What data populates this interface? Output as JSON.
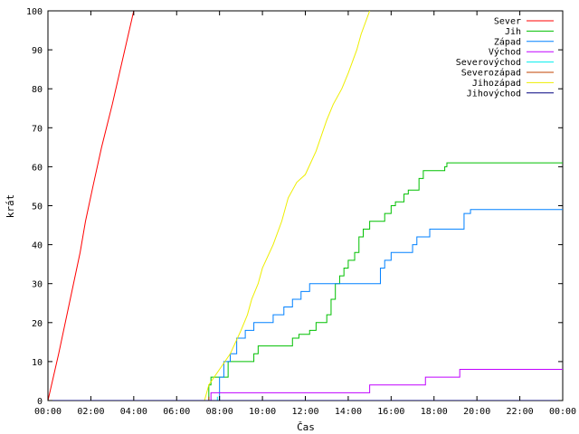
{
  "chart_data": {
    "type": "line",
    "title": "",
    "xlabel": "Čas",
    "ylabel": "krát",
    "xlim": [
      0,
      24
    ],
    "ylim": [
      0,
      100
    ],
    "x_tick_values": [
      0,
      2,
      4,
      6,
      8,
      10,
      12,
      14,
      16,
      18,
      20,
      22,
      24
    ],
    "x_tick_labels": [
      "00:00",
      "02:00",
      "04:00",
      "06:00",
      "08:00",
      "10:00",
      "12:00",
      "14:00",
      "16:00",
      "18:00",
      "20:00",
      "22:00",
      "00:00"
    ],
    "y_tick_values": [
      0,
      10,
      20,
      30,
      40,
      50,
      60,
      70,
      80,
      90,
      100
    ],
    "y_tick_labels": [
      "0",
      "10",
      "20",
      "30",
      "40",
      "50",
      "60",
      "70",
      "80",
      "90",
      "100"
    ],
    "grid": false,
    "legend_position": "top-right",
    "series": [
      {
        "name": "Sever",
        "color": "#ff0000",
        "step": false,
        "points": [
          [
            0,
            0
          ],
          [
            0.5,
            12
          ],
          [
            1,
            25
          ],
          [
            1.5,
            38
          ],
          [
            1.75,
            46
          ],
          [
            2.1,
            55
          ],
          [
            2.5,
            65
          ],
          [
            3,
            76
          ],
          [
            3.5,
            88
          ],
          [
            4,
            100
          ]
        ]
      },
      {
        "name": "Jih",
        "color": "#00c000",
        "step": true,
        "points": [
          [
            0,
            0
          ],
          [
            7.3,
            0
          ],
          [
            7.5,
            4
          ],
          [
            7.6,
            6
          ],
          [
            8.2,
            6
          ],
          [
            8.4,
            10
          ],
          [
            9.4,
            10
          ],
          [
            9.6,
            12
          ],
          [
            9.8,
            14
          ],
          [
            11.3,
            14
          ],
          [
            11.4,
            16
          ],
          [
            11.7,
            17
          ],
          [
            12.2,
            18
          ],
          [
            12.5,
            20
          ],
          [
            13,
            22
          ],
          [
            13.2,
            26
          ],
          [
            13.4,
            30
          ],
          [
            13.6,
            32
          ],
          [
            13.8,
            34
          ],
          [
            14,
            36
          ],
          [
            14.3,
            38
          ],
          [
            14.5,
            42
          ],
          [
            14.7,
            44
          ],
          [
            15,
            46
          ],
          [
            15.7,
            48
          ],
          [
            16,
            50
          ],
          [
            16.2,
            51
          ],
          [
            16.6,
            53
          ],
          [
            16.8,
            54
          ],
          [
            17.3,
            57
          ],
          [
            17.5,
            59
          ],
          [
            18.5,
            60
          ],
          [
            18.6,
            61
          ],
          [
            24,
            61
          ]
        ]
      },
      {
        "name": "Západ",
        "color": "#0080ff",
        "step": true,
        "points": [
          [
            0,
            0
          ],
          [
            7.8,
            0
          ],
          [
            8,
            6
          ],
          [
            8.2,
            10
          ],
          [
            8.5,
            12
          ],
          [
            8.8,
            16
          ],
          [
            9.2,
            18
          ],
          [
            9.6,
            20
          ],
          [
            10.5,
            22
          ],
          [
            11,
            24
          ],
          [
            11.4,
            26
          ],
          [
            11.8,
            28
          ],
          [
            12.2,
            30
          ],
          [
            15.3,
            30
          ],
          [
            15.5,
            34
          ],
          [
            15.7,
            36
          ],
          [
            16,
            38
          ],
          [
            16.9,
            38
          ],
          [
            17,
            40
          ],
          [
            17.2,
            42
          ],
          [
            17.8,
            44
          ],
          [
            19.2,
            44
          ],
          [
            19.4,
            48
          ],
          [
            19.7,
            49
          ],
          [
            24,
            49
          ]
        ]
      },
      {
        "name": "Východ",
        "color": "#c000ff",
        "step": true,
        "points": [
          [
            0,
            0
          ],
          [
            7.5,
            0
          ],
          [
            7.6,
            2
          ],
          [
            14.9,
            2
          ],
          [
            15,
            4
          ],
          [
            17.4,
            4
          ],
          [
            17.6,
            6
          ],
          [
            19.1,
            6
          ],
          [
            19.2,
            8
          ],
          [
            24,
            8
          ]
        ]
      },
      {
        "name": "Severovýchod",
        "color": "#00eeee",
        "step": true,
        "points": [
          [
            0,
            0
          ],
          [
            7.8,
            0
          ],
          [
            7.9,
            1
          ]
        ]
      },
      {
        "name": "Severozápad",
        "color": "#c04000",
        "step": true,
        "points": [
          [
            0,
            0
          ],
          [
            7.4,
            0
          ],
          [
            7.5,
            1
          ]
        ]
      },
      {
        "name": "Jihozápad",
        "color": "#eeee00",
        "step": false,
        "points": [
          [
            7.3,
            0
          ],
          [
            7.5,
            4
          ],
          [
            8,
            8
          ],
          [
            8.5,
            12
          ],
          [
            9,
            18
          ],
          [
            9.3,
            22
          ],
          [
            9.5,
            26
          ],
          [
            9.8,
            30
          ],
          [
            10,
            34
          ],
          [
            10.5,
            40
          ],
          [
            10.9,
            46
          ],
          [
            11.2,
            52
          ],
          [
            11.6,
            56
          ],
          [
            12,
            58
          ],
          [
            12.5,
            64
          ],
          [
            13,
            72
          ],
          [
            13.3,
            76
          ],
          [
            13.7,
            80
          ],
          [
            14,
            84
          ],
          [
            14.4,
            90
          ],
          [
            14.6,
            94
          ],
          [
            15,
            100
          ]
        ]
      },
      {
        "name": "Jihovýchod",
        "color": "#000080",
        "step": true,
        "points": [
          [
            0,
            0
          ],
          [
            24,
            0
          ]
        ]
      }
    ]
  }
}
